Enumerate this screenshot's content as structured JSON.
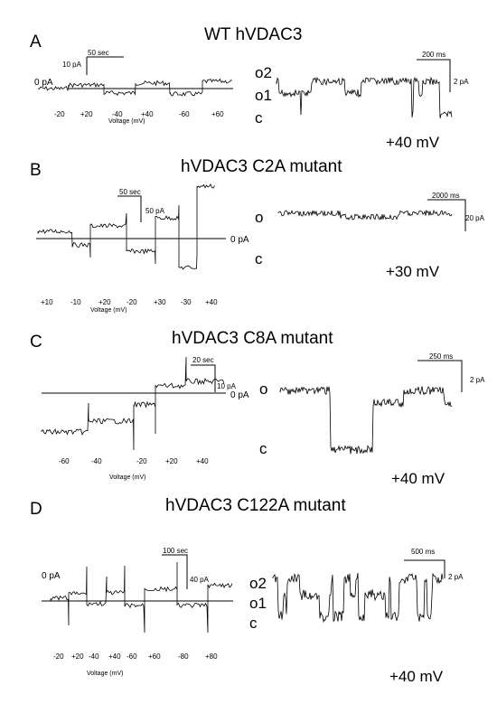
{
  "panels": [
    {
      "letter": "A",
      "title": "WT   hVDAC3",
      "zero_label": "0 pA",
      "time_scale": "50 sec",
      "current_scale": "10 pA",
      "voltages": [
        "-20",
        "+20",
        "-40",
        "+40",
        "-60",
        "+60"
      ],
      "xlabel": "Voltage (mV)",
      "states": [
        "o2",
        "o1",
        "c"
      ],
      "single_time_scale": "200 ms",
      "single_current_scale": "2 pA",
      "holding_voltage": "+40 mV"
    },
    {
      "letter": "B",
      "title": "hVDAC3 C2A mutant",
      "zero_label": "0 pA",
      "time_scale": "50 sec",
      "current_scale": "50 pA",
      "voltages": [
        "+10",
        "-10",
        "+20",
        "-20",
        "+30",
        "-30",
        "+40"
      ],
      "xlabel": "Voltage (mV)",
      "states": [
        "o",
        "c"
      ],
      "single_time_scale": "2000 ms",
      "single_current_scale": "20 pA",
      "holding_voltage": "+30 mV"
    },
    {
      "letter": "C",
      "title": "hVDAC3 C8A mutant",
      "zero_label": "0 pA",
      "time_scale": "20 sec",
      "current_scale": "10 pA",
      "voltages": [
        "-60",
        "-40",
        "-20",
        "+20",
        "+40"
      ],
      "xlabel": "Voltage (mV)",
      "states": [
        "o",
        "c"
      ],
      "single_time_scale": "250 ms",
      "single_current_scale": "2 pA",
      "holding_voltage": "+40 mV"
    },
    {
      "letter": "D",
      "title": "hVDAC3 C122A mutant",
      "zero_label": "0 pA",
      "time_scale": "100 sec",
      "current_scale": "40 pA",
      "voltages": [
        "-20",
        "+20",
        "-40",
        "+40",
        "-60",
        "+60",
        "-80",
        "+80"
      ],
      "xlabel": "Voltage (mV)",
      "states": [
        "o2",
        "o1",
        "c"
      ],
      "single_time_scale": "500 ms",
      "single_current_scale": "2 pA",
      "holding_voltage": "+40 mV"
    }
  ]
}
